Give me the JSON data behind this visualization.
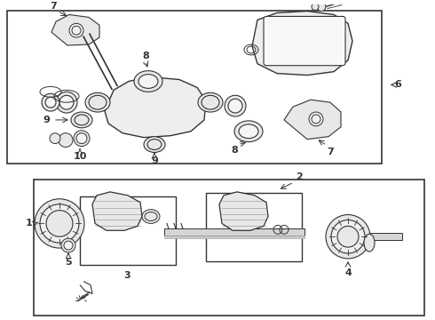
{
  "bg_color": "#ffffff",
  "line_color": "#333333",
  "label_fontsize": 8
}
